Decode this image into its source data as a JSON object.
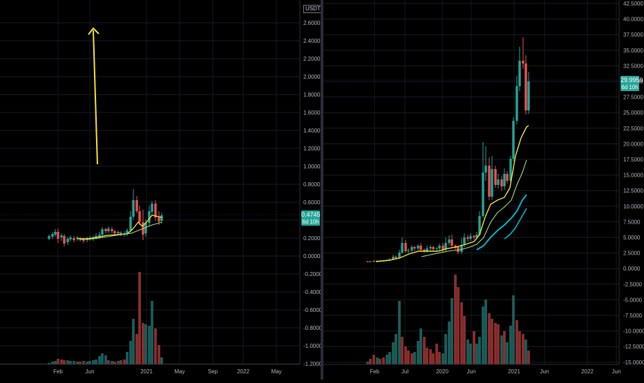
{
  "left_chart": {
    "currency": "USDT",
    "y_ticks": [
      "2.6000",
      "2.4000",
      "2.2000",
      "2.0000",
      "1.8000",
      "1.6000",
      "1.4000",
      "1.2000",
      "1.0000",
      "0.8000",
      "0.6000",
      "0.4000",
      "0.2000",
      "0.0000",
      "-0.2000",
      "-0.4000",
      "-0.6000",
      "-0.8000",
      "-1.0000",
      "-1.2000"
    ],
    "x_ticks": [
      "Feb",
      "Jun",
      "2021",
      "May",
      "Sep",
      "2022",
      "May"
    ],
    "current_price": "0.4745",
    "countdown": "6d 10h"
  },
  "right_chart": {
    "y_ticks": [
      "42.5000",
      "40.0000",
      "37.5000",
      "35.0000",
      "32.5000",
      "30.0000",
      "27.5000",
      "25.0000",
      "22.5000",
      "20.0000",
      "17.5000",
      "15.0000",
      "12.5000",
      "10.0000",
      "7.5000",
      "5.0000",
      "2.5000",
      "0.0000",
      "-2.5000",
      "-5.0000",
      "-7.5000",
      "-10.0000",
      "-12.5000",
      "-15.0000"
    ],
    "x_ticks": [
      "Feb",
      "Jul",
      "2020",
      "Jun",
      "2021",
      "Jun",
      "2022",
      "Jun"
    ],
    "current_price": "29.9959",
    "countdown": "6d 10h"
  },
  "colors": {
    "up": "#26a69a",
    "down": "#ef5350",
    "volume_up": "#1b5e5a",
    "volume_down": "#8b2f2f",
    "ma_fast": "#f7e733",
    "ma_mid": "#a8e08a",
    "ma_slow": "#00bcd4",
    "arrow": "#f7e733",
    "background": "#000000"
  }
}
